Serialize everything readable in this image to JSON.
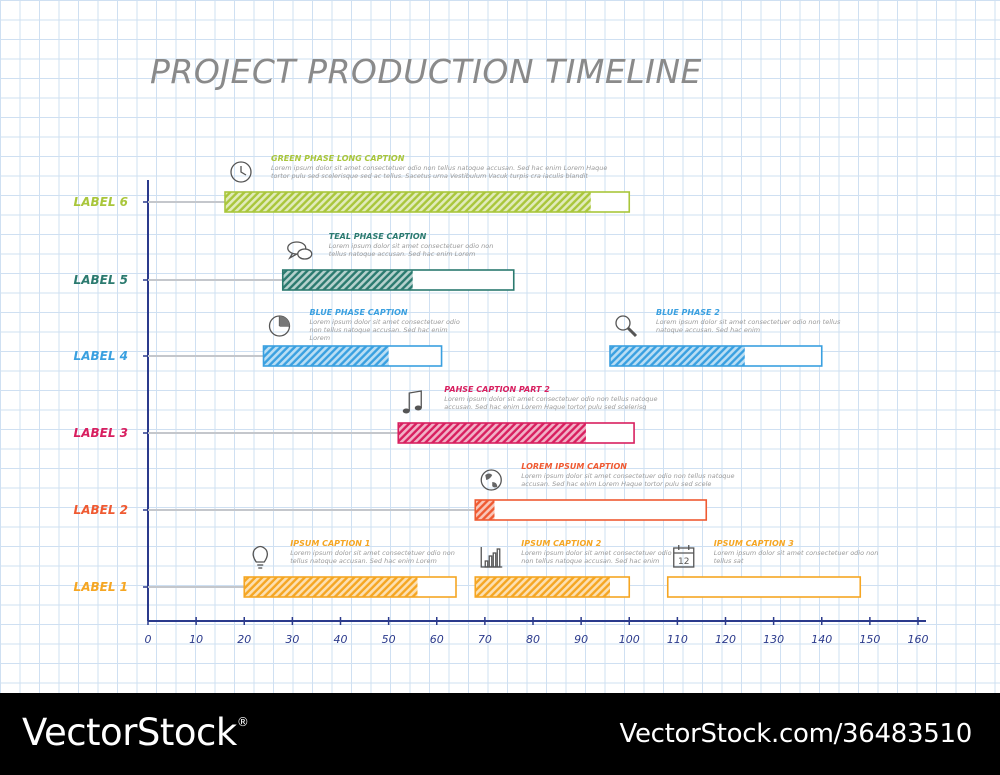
{
  "chart_data": {
    "type": "gantt",
    "title": "PROJECT PRODUCTION TIMELINE",
    "xlim": [
      0,
      160
    ],
    "x_ticks": [
      0,
      10,
      20,
      30,
      40,
      50,
      60,
      70,
      80,
      90,
      100,
      110,
      120,
      130,
      140,
      150,
      160
    ],
    "rows": [
      {
        "label": "LABEL 6",
        "color": "#a9c63b"
      },
      {
        "label": "LABEL 5",
        "color": "#2b7a6f"
      },
      {
        "label": "LABEL 4",
        "color": "#3aa0e0"
      },
      {
        "label": "LABEL 3",
        "color": "#d81f5f"
      },
      {
        "label": "LABEL 2",
        "color": "#ef5a32"
      },
      {
        "label": "LABEL 1",
        "color": "#f5a623"
      }
    ],
    "tasks": [
      {
        "row": 0,
        "start": 16,
        "end": 100,
        "done": 92,
        "icon": "clock-icon",
        "caption": "GREEN PHASE LONG CAPTION",
        "text": [
          "Lorem ipsum dolor sit amet consectetuer odio non tellus natoque accusan. Sed hac enim Lorem Haque",
          "tortor pulu sed scelerisque sed ac tellus. Sacetus urna Vestibulum Vacuk turpis cra iaculis blandit"
        ]
      },
      {
        "row": 1,
        "start": 28,
        "end": 76,
        "done": 55,
        "icon": "chat-icon",
        "caption": "TEAL PHASE CAPTION",
        "text": [
          "Lorem ipsum dolor sit amet consectetuer odio non",
          "tellus natoque accusan. Sed hac enim Lorem"
        ]
      },
      {
        "row": 2,
        "start": 24,
        "end": 61,
        "done": 50,
        "icon": "pie-chart-icon",
        "caption": "BLUE PHASE CAPTION",
        "text": [
          "Lorem ipsum dolor sit amet consectetuer odio",
          "non tellus natoque accusan. Sed hac enim",
          "Lorem"
        ]
      },
      {
        "row": 2,
        "start": 96,
        "end": 140,
        "done": 124,
        "icon": "magnifier-icon",
        "caption": "BLUE PHASE 2",
        "text": [
          "Lorem ipsum dolor sit amet consectetuer odio non tellus",
          "natoque accusan. Sed hac enim"
        ]
      },
      {
        "row": 3,
        "start": 52,
        "end": 101,
        "done": 91,
        "icon": "music-note-icon",
        "caption": "PAHSE CAPTION PART 2",
        "text": [
          "Lorem ipsum dolor sit amet consectetuer odio non tellus natoque",
          "accusan. Sed hac enim Lorem Haque tortor pulu sed scelerisq"
        ]
      },
      {
        "row": 4,
        "start": 68,
        "end": 116,
        "done": 72,
        "icon": "globe-icon",
        "caption": "LOREM IPSUM CAPTION",
        "text": [
          "Lorem ipsum dolor sit amet consectetuer odio non tellus natoque",
          "accusan. Sed hac enim Lorem Haque tortor pulu sed scele"
        ]
      },
      {
        "row": 5,
        "start": 20,
        "end": 64,
        "done": 56,
        "icon": "lightbulb-icon",
        "caption": "IPSUM CAPTION 1",
        "text": [
          "Lorem ipsum dolor sit amet consectetuer odio non",
          "tellus natoque accusan. Sed hac enim Lorem"
        ]
      },
      {
        "row": 5,
        "start": 68,
        "end": 100,
        "done": 96,
        "icon": "bar-chart-icon",
        "caption": "IPSUM CAPTION 2",
        "text": [
          "Lorem ipsum dolor sit amet consectetuer odio",
          "non tellus natoque accusan. Sed hac enim"
        ]
      },
      {
        "row": 5,
        "start": 108,
        "end": 148,
        "done": 108,
        "icon": "calendar-icon",
        "caption": "IPSUM CAPTION 3",
        "text": [
          "Lorem ipsum dolor sit amet consectetuer odio non",
          "tellus sat"
        ]
      }
    ]
  },
  "footer": {
    "brand": "VectorStock",
    "registered": "®",
    "image_id": "VectorStock.com/36483510"
  }
}
